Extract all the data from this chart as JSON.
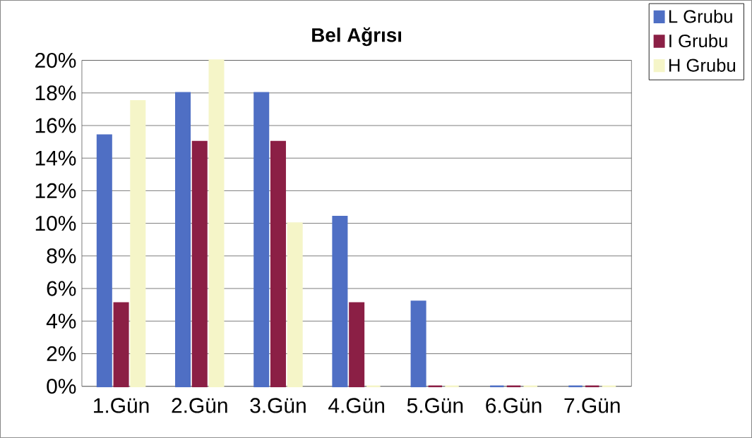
{
  "chart_data": {
    "type": "bar",
    "title": "Bel Ağrısı",
    "categories": [
      "1.Gün",
      "2.Gün",
      "3.Gün",
      "4.Gün",
      "5.Gün",
      "6.Gün",
      "7.Gün"
    ],
    "series": [
      {
        "name": "L Grubu",
        "color": "#4f6fc4",
        "values": [
          15.4,
          18,
          18,
          10.4,
          5.2,
          0,
          0
        ]
      },
      {
        "name": "I Grubu",
        "color": "#8b1f45",
        "values": [
          5.1,
          15,
          15,
          5.1,
          0,
          0,
          0
        ]
      },
      {
        "name": "H Grubu",
        "color": "#f5f5c8",
        "values": [
          17.5,
          20,
          10,
          0,
          0,
          0,
          0
        ]
      }
    ],
    "ylim": [
      0,
      20
    ],
    "yticks": [
      {
        "value": 0,
        "label": "0%"
      },
      {
        "value": 2,
        "label": "2%"
      },
      {
        "value": 4,
        "label": "4%"
      },
      {
        "value": 6,
        "label": "6%"
      },
      {
        "value": 8,
        "label": "8%"
      },
      {
        "value": 10,
        "label": "10%"
      },
      {
        "value": 12,
        "label": "12%"
      },
      {
        "value": 14,
        "label": "14%"
      },
      {
        "value": 16,
        "label": "16%"
      },
      {
        "value": 18,
        "label": "18%"
      },
      {
        "value": 20,
        "label": "20%"
      }
    ],
    "grid": "y",
    "legend": "top right"
  }
}
